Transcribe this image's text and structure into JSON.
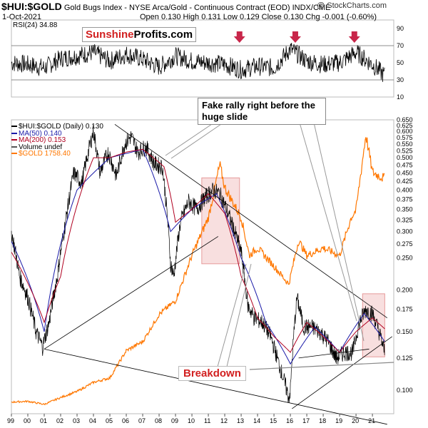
{
  "header": {
    "ticker": "$HUI:$GOLD",
    "subtitle": "Gold Bugs Index - NYSE Arca/Gold - Continuous Contract (EOD)  INDX/CME",
    "watermark": "@ StockCharts.com",
    "date": "1-Oct-2021",
    "ohlc": "Open 0.130  High 0.131  Low 0.129  Close 0.130  Chg -0.001 (-0.60%)"
  },
  "logo": {
    "part1": "Sunshine",
    "part2": "Profits.com"
  },
  "annotations": {
    "fake_rally": "Fake rally right before the huge slide",
    "breakdown": "Breakdown"
  },
  "legend": [
    {
      "label": "$HUI:$GOLD (Daily) 0.130",
      "color": "#000000"
    },
    {
      "label": "MA(50) 0.140",
      "color": "#1a1aa8"
    },
    {
      "label": "MA(200) 0.153",
      "color": "#b00020"
    },
    {
      "label": "Volume undef",
      "color": "#555555"
    },
    {
      "label": "$GOLD 1758.40",
      "color": "#ff7700"
    }
  ],
  "chart_data": [
    {
      "type": "line",
      "title": "RSI(24) 34.88",
      "ylim": [
        10,
        100
      ],
      "y_ticks": [
        10,
        30,
        50,
        70,
        90
      ],
      "reference_lines": [
        30,
        70
      ],
      "current": 34.88,
      "marker_years": [
        2012.9,
        2016.3,
        2019.9
      ],
      "series": [
        {
          "name": "RSI(24)",
          "color": "#000000",
          "x": [
            1999,
            2000,
            2001,
            2002,
            2003,
            2004,
            2005,
            2006,
            2007,
            2008,
            2009,
            2010,
            2011,
            2012,
            2013,
            2014,
            2015,
            2016,
            2017,
            2018,
            2019,
            2020,
            2021,
            2021.75
          ],
          "values": [
            50,
            48,
            44,
            55,
            58,
            62,
            52,
            60,
            54,
            45,
            58,
            52,
            50,
            48,
            42,
            46,
            44,
            66,
            52,
            48,
            50,
            62,
            48,
            35
          ]
        }
      ]
    },
    {
      "type": "line",
      "title": "$HUI:$GOLD (Daily) 0.130",
      "y_axis": "log",
      "ylim": [
        0.085,
        0.65
      ],
      "y_ticks": [
        0.1,
        0.125,
        0.15,
        0.175,
        0.2,
        0.25,
        0.275,
        0.3,
        0.325,
        0.35,
        0.375,
        0.4,
        0.425,
        0.45,
        0.475,
        0.5,
        0.525,
        0.55,
        0.575,
        0.6,
        0.625,
        0.65
      ],
      "x_ticks": [
        "99",
        "00",
        "01",
        "02",
        "03",
        "04",
        "05",
        "06",
        "07",
        "08",
        "09",
        "10",
        "11",
        "12",
        "13",
        "14",
        "15",
        "16",
        "17",
        "18",
        "19",
        "20",
        "21"
      ],
      "xlim": [
        1999,
        2022.3
      ],
      "series": [
        {
          "name": "$HUI:$GOLD",
          "color": "#000000",
          "x": [
            1999,
            1999.5,
            2000,
            2000.5,
            2000.9,
            2001.3,
            2001.8,
            2002.3,
            2002.8,
            2003.3,
            2003.8,
            2004.0,
            2004.4,
            2004.9,
            2005.4,
            2005.9,
            2006.3,
            2006.7,
            2007.2,
            2007.7,
            2008.2,
            2008.7,
            2008.9,
            2009.3,
            2009.8,
            2010.3,
            2010.8,
            2011.3,
            2011.7,
            2012.2,
            2012.7,
            2013.0,
            2013.4,
            2013.8,
            2014.3,
            2014.8,
            2015.3,
            2015.9,
            2016.0,
            2016.4,
            2016.8,
            2017.3,
            2017.8,
            2018.3,
            2018.8,
            2019.3,
            2019.8,
            2020.2,
            2020.6,
            2021.0,
            2021.4,
            2021.75
          ],
          "values": [
            0.3,
            0.22,
            0.19,
            0.15,
            0.135,
            0.16,
            0.22,
            0.32,
            0.45,
            0.42,
            0.55,
            0.6,
            0.45,
            0.52,
            0.44,
            0.55,
            0.58,
            0.52,
            0.54,
            0.48,
            0.47,
            0.24,
            0.22,
            0.32,
            0.37,
            0.35,
            0.38,
            0.4,
            0.39,
            0.34,
            0.29,
            0.26,
            0.18,
            0.165,
            0.16,
            0.145,
            0.12,
            0.095,
            0.1,
            0.19,
            0.155,
            0.155,
            0.15,
            0.14,
            0.125,
            0.13,
            0.13,
            0.16,
            0.175,
            0.17,
            0.15,
            0.13
          ]
        },
        {
          "name": "MA(50)",
          "color": "#1a1aa8",
          "x": [
            1999,
            2001,
            2003,
            2005,
            2007,
            2008.7,
            2010,
            2011.5,
            2013,
            2014.5,
            2016,
            2017.5,
            2019,
            2020.5,
            2021.75
          ],
          "values": [
            0.28,
            0.15,
            0.4,
            0.5,
            0.53,
            0.3,
            0.35,
            0.39,
            0.25,
            0.16,
            0.12,
            0.155,
            0.13,
            0.17,
            0.14
          ]
        },
        {
          "name": "MA(200)",
          "color": "#b00020",
          "x": [
            1999,
            2001,
            2002,
            2003,
            2004,
            2005,
            2006,
            2007,
            2008.3,
            2009,
            2010,
            2011,
            2012,
            2013,
            2014,
            2015,
            2016,
            2017,
            2018,
            2019,
            2020,
            2021,
            2021.75
          ],
          "values": [
            0.26,
            0.16,
            0.22,
            0.36,
            0.5,
            0.5,
            0.52,
            0.53,
            0.47,
            0.32,
            0.35,
            0.39,
            0.34,
            0.22,
            0.165,
            0.145,
            0.13,
            0.16,
            0.145,
            0.13,
            0.15,
            0.165,
            0.153
          ]
        },
        {
          "name": "$GOLD",
          "color": "#ff7700",
          "x": [
            1999,
            2000,
            2001,
            2002,
            2003,
            2004,
            2005,
            2006,
            2007,
            2008,
            2009,
            2010,
            2011,
            2011.7,
            2012,
            2013,
            2013.5,
            2014,
            2015,
            2015.9,
            2016.5,
            2017,
            2018,
            2019,
            2019.7,
            2020,
            2020.6,
            2021,
            2021.75
          ],
          "values": [
            280,
            285,
            265,
            310,
            350,
            410,
            440,
            620,
            680,
            860,
            950,
            1250,
            1500,
            1850,
            1700,
            1500,
            1250,
            1300,
            1180,
            1060,
            1350,
            1250,
            1300,
            1250,
            1500,
            1550,
            2050,
            1800,
            1758.4
          ]
        }
      ]
    }
  ]
}
